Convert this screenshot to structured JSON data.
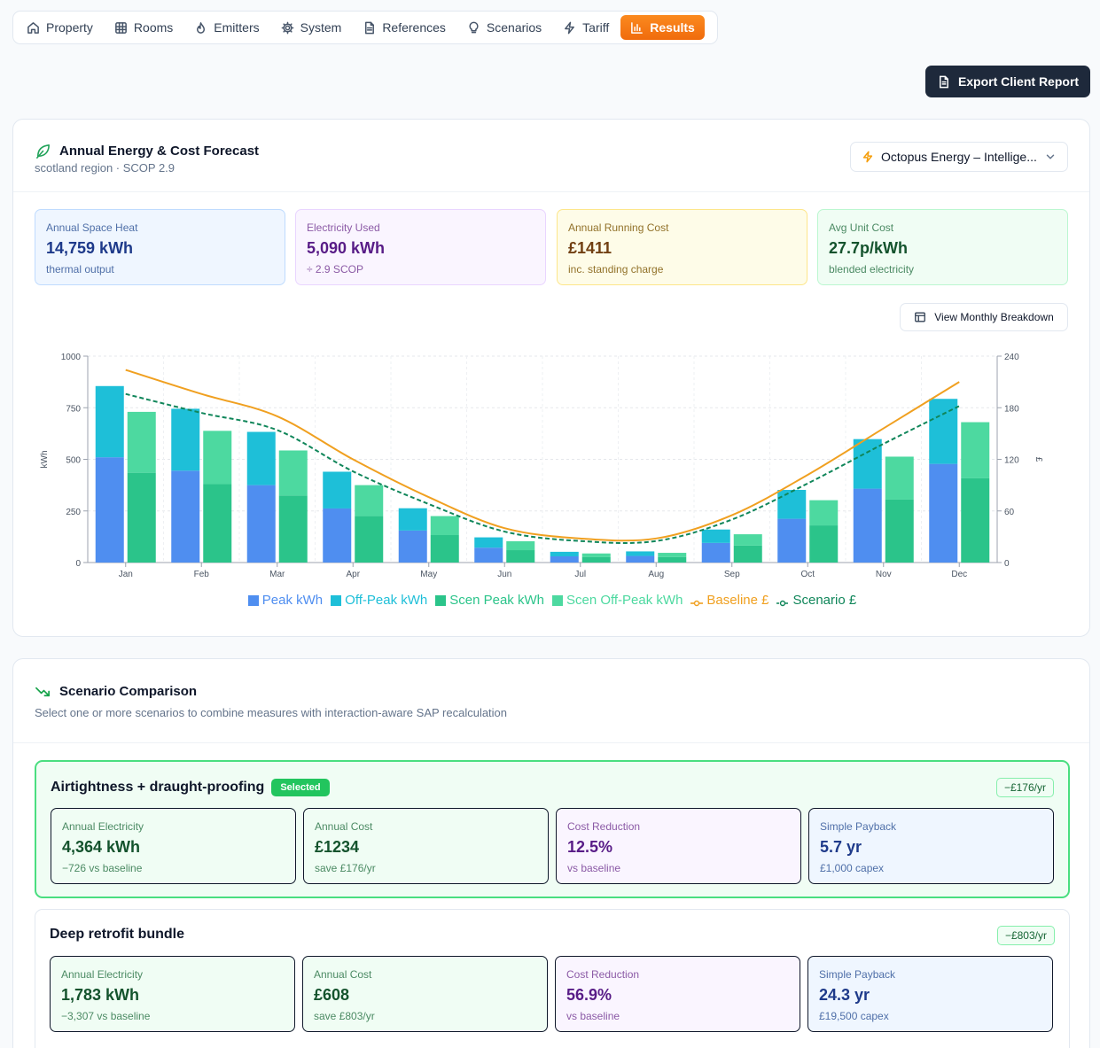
{
  "tabs": [
    {
      "label": "Property",
      "icon": "home-icon"
    },
    {
      "label": "Rooms",
      "icon": "grid-icon"
    },
    {
      "label": "Emitters",
      "icon": "flame-icon"
    },
    {
      "label": "System",
      "icon": "gear-icon"
    },
    {
      "label": "References",
      "icon": "document-icon"
    },
    {
      "label": "Scenarios",
      "icon": "lightbulb-icon"
    },
    {
      "label": "Tariff",
      "icon": "lightning-icon"
    },
    {
      "label": "Results",
      "icon": "bar-chart-icon",
      "active": true
    }
  ],
  "export_button": "Export Client Report",
  "forecast": {
    "title": "Annual Energy & Cost Forecast",
    "subtitle": "scotland region · SCOP 2.9",
    "tariff_selected": "Octopus Energy – Intellige...",
    "stats": [
      {
        "label": "Annual Space Heat",
        "value": "14,759 kWh",
        "sub": "thermal output"
      },
      {
        "label": "Electricity Used",
        "value": "5,090 kWh",
        "sub": "÷ 2.9 SCOP"
      },
      {
        "label": "Annual Running Cost",
        "value": "£1411",
        "sub": "inc. standing charge"
      },
      {
        "label": "Avg Unit Cost",
        "value": "27.7p/kWh",
        "sub": "blended electricity"
      }
    ],
    "monthly_button": "View Monthly Breakdown"
  },
  "chart_data": {
    "type": "bar",
    "categories": [
      "Jan",
      "Feb",
      "Mar",
      "Apr",
      "May",
      "Jun",
      "Jul",
      "Aug",
      "Sep",
      "Oct",
      "Nov",
      "Dec"
    ],
    "ylabel": "kWh",
    "y2label": "£",
    "ylim": [
      0,
      1000
    ],
    "y2lim": [
      0,
      240
    ],
    "yticks": [
      0,
      250,
      500,
      750,
      1000
    ],
    "y2ticks": [
      0,
      60,
      120,
      180,
      240
    ],
    "grid": true,
    "legend_position": "bottom",
    "series": [
      {
        "name": "Peak kWh",
        "kind": "bar",
        "stack": "baseline",
        "color": "#4f8ef0",
        "values": [
          510,
          445,
          375,
          262,
          155,
          72,
          30,
          32,
          95,
          212,
          358,
          478
        ]
      },
      {
        "name": "Off-Peak kWh",
        "kind": "bar",
        "stack": "baseline",
        "color": "#1ebfd8",
        "values": [
          345,
          300,
          258,
          178,
          108,
          50,
          22,
          22,
          65,
          140,
          240,
          315
        ]
      },
      {
        "name": "Scen Peak kWh",
        "kind": "bar",
        "stack": "scenario",
        "color": "#2bc48a",
        "values": [
          435,
          380,
          325,
          225,
          133,
          60,
          26,
          27,
          82,
          180,
          305,
          408
        ]
      },
      {
        "name": "Scen Off-Peak kWh",
        "kind": "bar",
        "stack": "scenario",
        "color": "#4dd9a0",
        "values": [
          295,
          258,
          218,
          150,
          92,
          43,
          18,
          20,
          55,
          122,
          208,
          272
        ]
      },
      {
        "name": "Baseline £",
        "kind": "line",
        "axis": "right",
        "color": "#f0a020",
        "values": [
          224,
          196,
          170,
          120,
          76,
          40,
          28,
          28,
          55,
          102,
          156,
          210
        ]
      },
      {
        "name": "Scenario £",
        "kind": "line",
        "axis": "right",
        "dashed": true,
        "color": "#10865a",
        "values": [
          196,
          174,
          154,
          106,
          68,
          36,
          25,
          25,
          50,
          92,
          138,
          182
        ]
      }
    ]
  },
  "comparison": {
    "title": "Scenario Comparison",
    "subtitle": "Select one or more scenarios to combine measures with interaction-aware SAP recalculation",
    "scenarios": [
      {
        "name": "Airtightness + draught-proofing",
        "badge": "Selected",
        "saving_badge": "−£176/yr",
        "metrics": [
          {
            "label": "Annual Electricity",
            "value": "4,364 kWh",
            "sub": "−726 vs baseline"
          },
          {
            "label": "Annual Cost",
            "value": "£1234",
            "sub": "save £176/yr"
          },
          {
            "label": "Cost Reduction",
            "value": "12.5%",
            "sub": "vs baseline"
          },
          {
            "label": "Simple Payback",
            "value": "5.7 yr",
            "sub": "£1,000 capex"
          }
        ]
      },
      {
        "name": "Deep retrofit bundle",
        "saving_badge": "−£803/yr",
        "metrics": [
          {
            "label": "Annual Electricity",
            "value": "1,783 kWh",
            "sub": "−3,307 vs baseline"
          },
          {
            "label": "Annual Cost",
            "value": "£608",
            "sub": "save £803/yr"
          },
          {
            "label": "Cost Reduction",
            "value": "56.9%",
            "sub": "vs baseline"
          },
          {
            "label": "Simple Payback",
            "value": "24.3 yr",
            "sub": "£19,500 capex"
          }
        ]
      }
    ]
  }
}
